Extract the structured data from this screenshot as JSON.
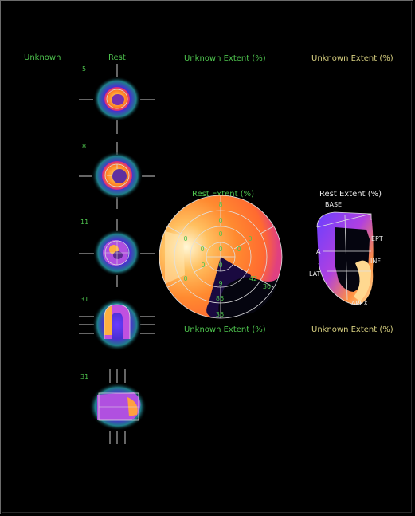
{
  "colors": {
    "label_green": "#4ec44e",
    "label_yellow": "#d8d080",
    "background": "#000000"
  },
  "headers": {
    "col1": "Unknown",
    "col2": "Rest",
    "col3": "Unknown Extent (%)",
    "col4": "Unknown Extent (%)"
  },
  "slices": [
    {
      "number": "5"
    },
    {
      "number": "8"
    },
    {
      "number": "11"
    },
    {
      "number": "31"
    },
    {
      "number": "31"
    }
  ],
  "polar_map": {
    "title": "Rest Extent (%)",
    "bottom_label": "Unknown Extent (%)",
    "segment_values": [
      "8",
      "0",
      "0",
      "0",
      "0",
      "0",
      "0",
      "0",
      "0",
      "0",
      "0",
      "9",
      "42",
      "30",
      "86",
      "36"
    ]
  },
  "threed_view": {
    "title": "Rest Extent (%)",
    "bottom_label": "Unknown Extent (%)",
    "labels": {
      "base": "BASE",
      "ept": "EPT",
      "inf": "INF",
      "lat": "LAT",
      "apex": "APEX",
      "a": "A"
    }
  }
}
